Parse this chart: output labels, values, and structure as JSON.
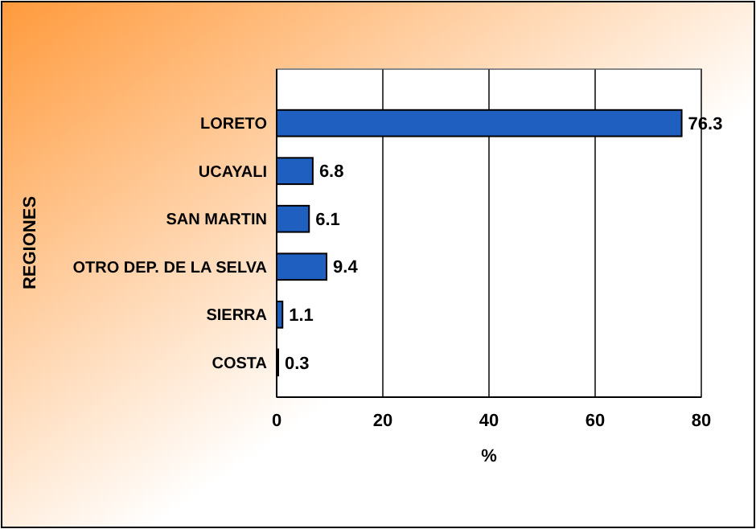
{
  "chart_data": {
    "type": "bar",
    "orientation": "horizontal",
    "xlabel": "%",
    "ylabel": "REGIONES",
    "categories": [
      "LORETO",
      "UCAYALI",
      "SAN MARTIN",
      "OTRO DEP. DE LA SELVA",
      "SIERRA",
      "COSTA"
    ],
    "values": [
      76.3,
      6.8,
      6.1,
      9.4,
      1.1,
      0.3
    ],
    "color": "#1f5fbf",
    "xlim": [
      0,
      80
    ],
    "xticks": [
      0,
      20,
      40,
      60,
      80
    ],
    "grid": "x",
    "data_labels": true
  }
}
